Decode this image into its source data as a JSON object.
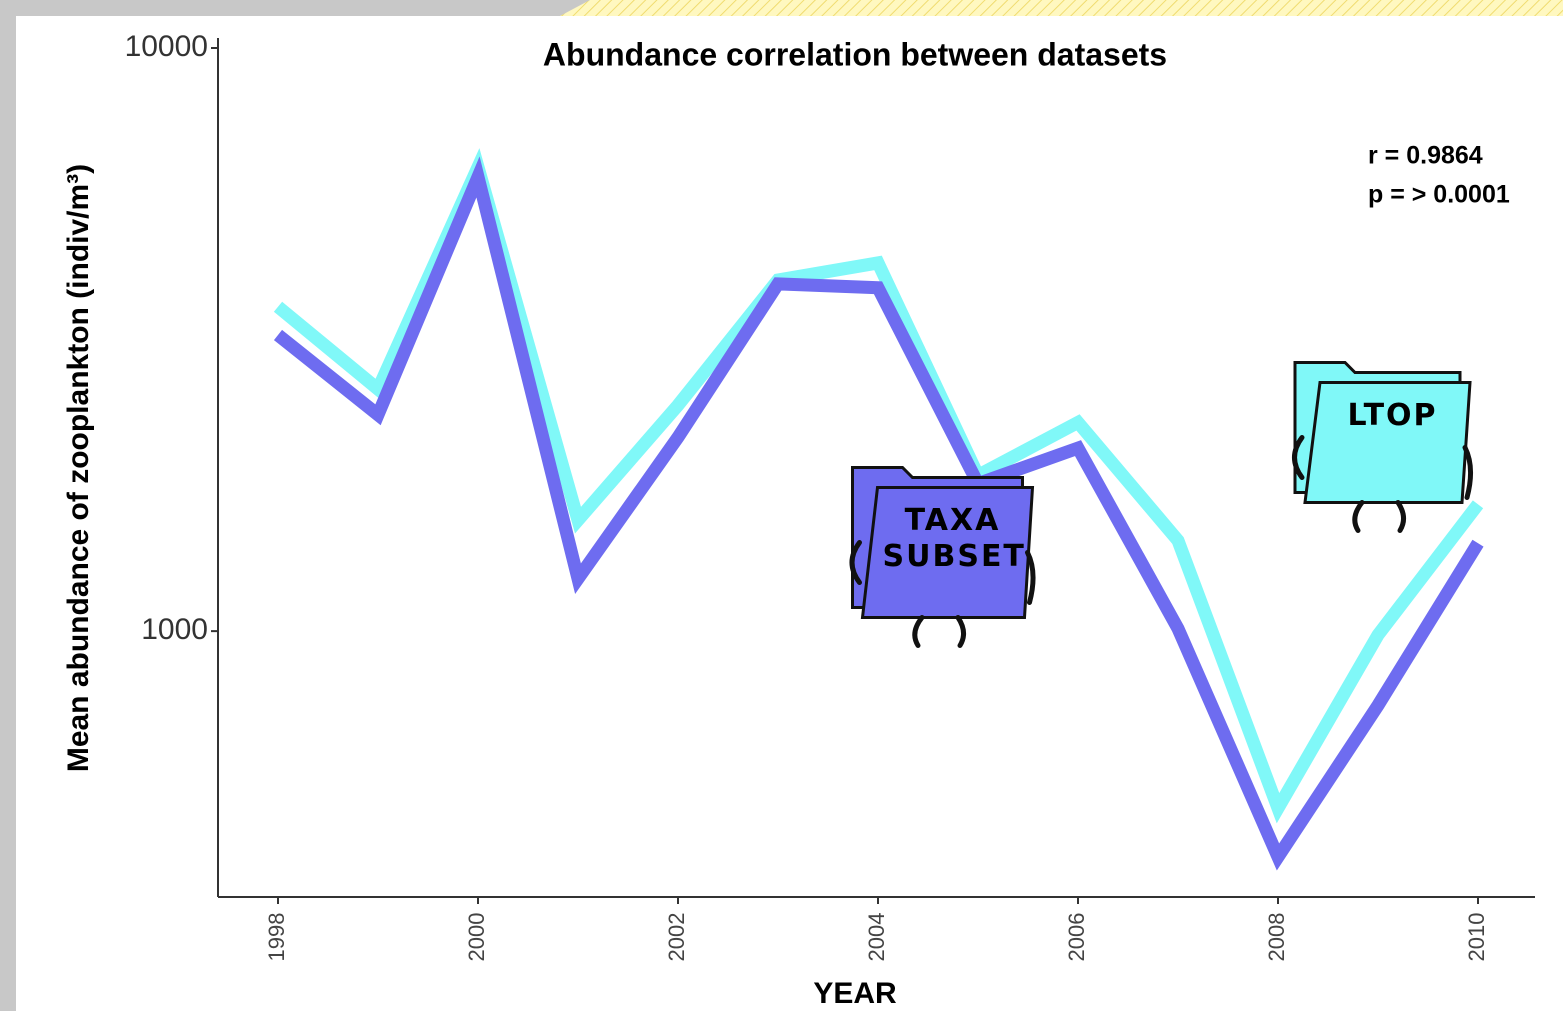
{
  "chart_data": {
    "type": "line",
    "title": "Abundance correlation between datasets",
    "x_label": "YEAR",
    "y_label": "Mean abundance of zooplankton (indiv/m³)",
    "annotations": [
      "r = 0.9864",
      "p = > 0.0001"
    ],
    "x": [
      1998,
      1999,
      2000,
      2001,
      2002,
      2003,
      2004,
      2005,
      2006,
      2007,
      2008,
      2009,
      2010
    ],
    "series": [
      {
        "name": "LTOP",
        "color": "#80f8f8",
        "values": [
          3600,
          2600,
          6250,
          1550,
          2440,
          4000,
          4280,
          1850,
          2280,
          1430,
          497,
          985,
          1650
        ]
      },
      {
        "name": "TAXA SUBSET",
        "color": "#6e6cf0",
        "values": [
          3220,
          2350,
          6010,
          1230,
          2150,
          3940,
          3880,
          1790,
          2060,
          1010,
          410,
          746,
          1415
        ]
      }
    ],
    "xlim": [
      1997.4,
      2010.57
    ],
    "xticks": [
      1998,
      2000,
      2002,
      2004,
      2006,
      2008,
      2010
    ],
    "ylim": [
      350,
      10000
    ],
    "yticks": [
      1000,
      10000
    ],
    "y_log": true,
    "grid": false
  }
}
